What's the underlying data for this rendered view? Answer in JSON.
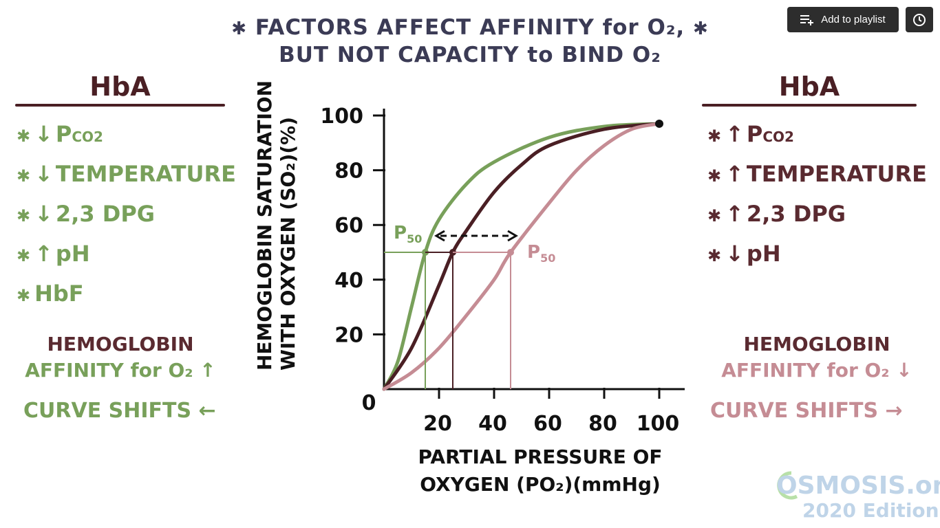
{
  "title": {
    "line1": "FACTORS AFFECT AFFINITY for O₂,",
    "line2": "BUT NOT CAPACITY to BIND O₂",
    "star": "✱"
  },
  "toolbar": {
    "add_to_playlist": "Add to playlist",
    "playlist_icon": "playlist-add-icon",
    "watch_later_icon": "clock-icon"
  },
  "left": {
    "heading": "HbA",
    "factors": [
      {
        "arrow": "↓",
        "text": "P",
        "sub": "CO2"
      },
      {
        "arrow": "↓",
        "text": "TEMPERATURE",
        "sub": ""
      },
      {
        "arrow": "↓",
        "text": "2,3 DPG",
        "sub": ""
      },
      {
        "arrow": "↑",
        "text": "pH",
        "sub": ""
      },
      {
        "arrow": "",
        "text": "HbF",
        "sub": ""
      }
    ],
    "note_line1": "HEMOGLOBIN",
    "note_line2": "AFFINITY for O₂ ↑",
    "shift": "CURVE SHIFTS ←"
  },
  "right": {
    "heading": "HbA",
    "factors": [
      {
        "arrow": "↑",
        "text": "P",
        "sub": "CO2"
      },
      {
        "arrow": "↑",
        "text": "TEMPERATURE",
        "sub": ""
      },
      {
        "arrow": "↑",
        "text": "2,3 DPG",
        "sub": ""
      },
      {
        "arrow": "↓",
        "text": "pH",
        "sub": ""
      }
    ],
    "note_line1": "HEMOGLOBIN",
    "note_line2": "AFFINITY for O₂ ↓",
    "shift": "CURVE SHIFTS →"
  },
  "chart_data": {
    "type": "line",
    "ylabel_line1": "HEMOGLOBIN SATURATION",
    "ylabel_line2": "WITH OXYGEN (SO₂)(%)",
    "xlabel_line1": "PARTIAL PRESSURE OF",
    "xlabel_line2": "OXYGEN (PO₂)(mmHg)",
    "xlim": [
      0,
      100
    ],
    "ylim": [
      0,
      100
    ],
    "x_ticks": [
      "20",
      "40",
      "60",
      "80",
      "100"
    ],
    "y_ticks": [
      "0",
      "20",
      "40",
      "60",
      "80",
      "100"
    ],
    "p50_label": "P",
    "p50_sub": "50",
    "series": [
      {
        "color": "#78a05a",
        "p50": 15,
        "points": [
          [
            0,
            0
          ],
          [
            5,
            10
          ],
          [
            10,
            30
          ],
          [
            15,
            50
          ],
          [
            20,
            62
          ],
          [
            30,
            75
          ],
          [
            40,
            83
          ],
          [
            60,
            92
          ],
          [
            80,
            96
          ],
          [
            100,
            97
          ]
        ]
      },
      {
        "color": "#4a1f24",
        "p50": 25,
        "points": [
          [
            0,
            0
          ],
          [
            10,
            15
          ],
          [
            20,
            38
          ],
          [
            25,
            50
          ],
          [
            30,
            58
          ],
          [
            40,
            72
          ],
          [
            50,
            82
          ],
          [
            60,
            89
          ],
          [
            80,
            95
          ],
          [
            100,
            97
          ]
        ]
      },
      {
        "color": "#c58c94",
        "p50": 46,
        "points": [
          [
            0,
            0
          ],
          [
            10,
            6
          ],
          [
            20,
            15
          ],
          [
            30,
            27
          ],
          [
            40,
            40
          ],
          [
            46,
            50
          ],
          [
            60,
            68
          ],
          [
            70,
            80
          ],
          [
            80,
            89
          ],
          [
            90,
            95
          ],
          [
            100,
            97
          ]
        ]
      }
    ]
  },
  "logo": {
    "name": "OSMOSIS.org",
    "edition": "2020 Edition"
  }
}
